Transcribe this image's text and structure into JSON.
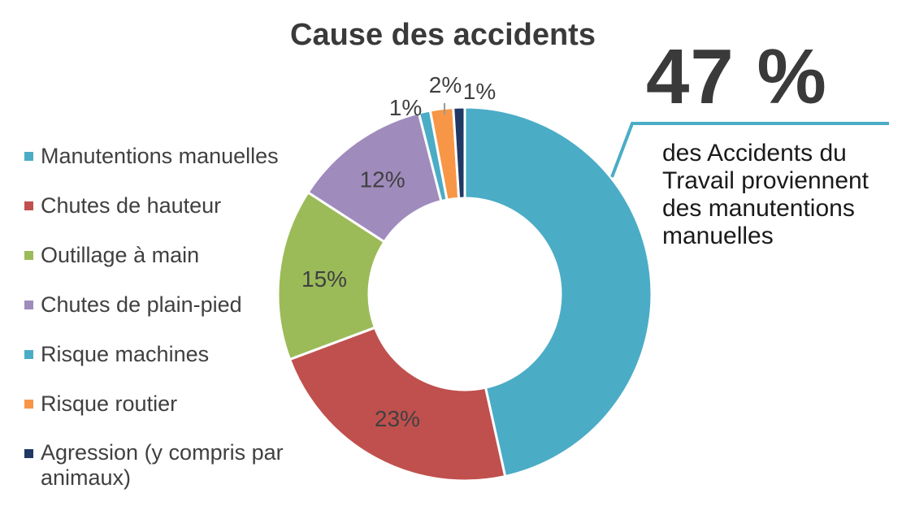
{
  "chart_data": {
    "type": "pie",
    "title": "Cause des accidents",
    "categories": [
      "Manutentions manuelles",
      "Chutes de hauteur",
      "Outillage à main",
      "Chutes de plain-pied",
      "Risque machines",
      "Risque routier",
      "Agression (y compris par animaux)"
    ],
    "values": [
      47,
      23,
      15,
      12,
      1,
      2,
      1
    ],
    "data_labels": [
      "",
      "23%",
      "15%",
      "12%",
      "1%",
      "2%",
      "1%"
    ],
    "colors": [
      "#4bacc6",
      "#c0504d",
      "#9bbb59",
      "#a08bbd",
      "#4bacc6",
      "#f79646",
      "#1f3864"
    ],
    "donut": true,
    "legend_position": "left"
  },
  "callout": {
    "value": "47 %",
    "text": "des Accidents du Travail proviennent des manutentions manuelles",
    "line_color": "#4bacc6"
  }
}
